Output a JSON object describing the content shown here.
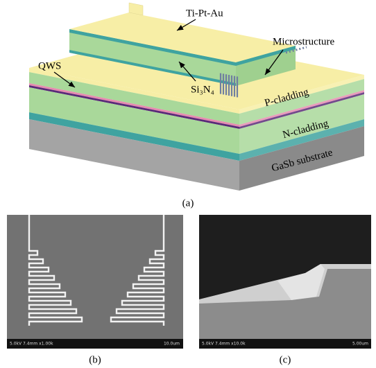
{
  "panel_a": {
    "labels": {
      "ti_pt_au": "Ti-Pt-Au",
      "microstructure": "Microstructure",
      "qws": "QWS",
      "si3n4": "Si₃N₄",
      "p_cladding": "P-cladding",
      "n_cladding": "N-cladding",
      "gasb_substrate": "GaSb substrate"
    },
    "caption": "(a)"
  },
  "panel_b": {
    "info": "5.0kV 7.4mm x1.00k",
    "scale": "10.0um",
    "caption": "(b)"
  },
  "panel_c": {
    "info": "5.0kV 7.4mm x10.0k",
    "scale": "5.00um",
    "caption": "(c)"
  }
}
